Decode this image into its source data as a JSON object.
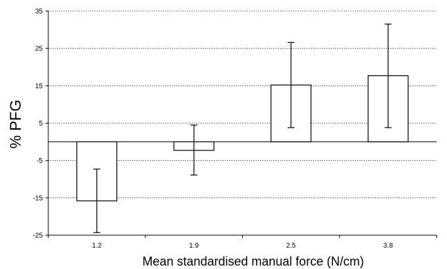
{
  "chart_data": {
    "type": "bar",
    "title": "",
    "xlabel": "Mean standardised manual force (N/cm)",
    "ylabel": "% PFG",
    "categories": [
      "1.2",
      "1.9",
      "2.5",
      "3.8"
    ],
    "values": [
      -15.8,
      -2.3,
      15.2,
      17.7
    ],
    "error_low": [
      -24.3,
      -8.9,
      3.8,
      3.8
    ],
    "error_high": [
      -7.3,
      4.5,
      26.6,
      31.5
    ],
    "ylim": [
      -25,
      35
    ],
    "yticks": [
      "35",
      "25",
      "15",
      "5",
      "-5",
      "-15",
      "-25"
    ],
    "ytick_values": [
      35,
      25,
      15,
      5,
      -5,
      -15,
      -25
    ],
    "grid": true,
    "legend": "none",
    "bar_fill": "#ffffff",
    "line_color": "#000000"
  }
}
